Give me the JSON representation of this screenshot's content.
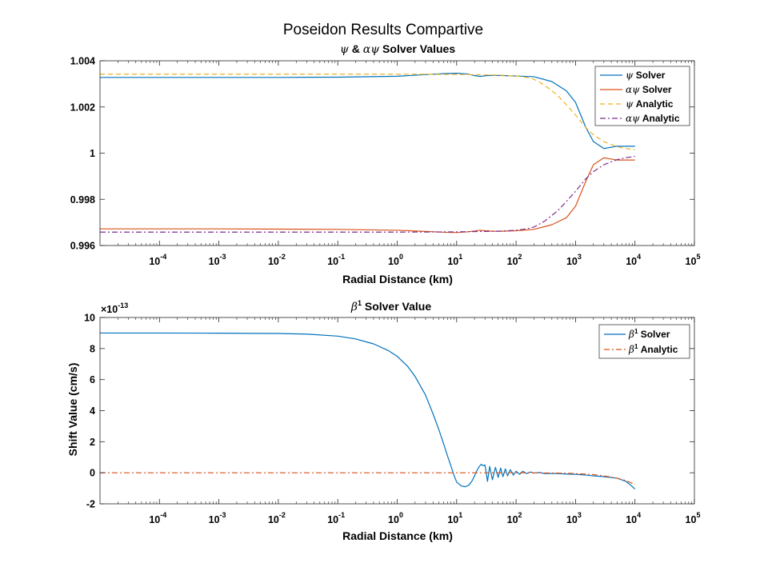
{
  "figure": {
    "suptitle": "Poseidon Results Compartive"
  },
  "colors": {
    "blue": "#0072BD",
    "orange": "#D95319",
    "yellow": "#EDB120",
    "purple": "#7E2F8E"
  },
  "chart_data": [
    {
      "type": "line",
      "title": "ψ & αψ Solver Values",
      "xlabel": "Radial Distance (km)",
      "ylabel": "",
      "xscale": "log",
      "xlim": [
        1e-05,
        100000.0
      ],
      "ylim": [
        0.996,
        1.004
      ],
      "xticks": [
        {
          "base": "10",
          "exp": "-4",
          "value": 0.0001
        },
        {
          "base": "10",
          "exp": "-3",
          "value": 0.001
        },
        {
          "base": "10",
          "exp": "-2",
          "value": 0.01
        },
        {
          "base": "10",
          "exp": "-1",
          "value": 0.1
        },
        {
          "base": "10",
          "exp": "0",
          "value": 1
        },
        {
          "base": "10",
          "exp": "1",
          "value": 10
        },
        {
          "base": "10",
          "exp": "2",
          "value": 100
        },
        {
          "base": "10",
          "exp": "3",
          "value": 1000
        },
        {
          "base": "10",
          "exp": "4",
          "value": 10000
        },
        {
          "base": "10",
          "exp": "5",
          "value": 100000
        }
      ],
      "yticks": [
        {
          "label": "0.996",
          "value": 0.996
        },
        {
          "label": "0.998",
          "value": 0.998
        },
        {
          "label": "1",
          "value": 1.0
        },
        {
          "label": "1.002",
          "value": 1.002
        },
        {
          "label": "1.004",
          "value": 1.004
        }
      ],
      "grid": false,
      "legend_position": "top-right",
      "series": [
        {
          "name": "ψ Solver",
          "greek": "ψ",
          "suffix": " Solver",
          "color": "#0072BD",
          "dash": "solid",
          "x": [
            1e-05,
            0.0001,
            0.001,
            0.01,
            0.1,
            1,
            3,
            7,
            10,
            15,
            20,
            25,
            30,
            40,
            60,
            100,
            200,
            400,
            700,
            1000,
            1500,
            2000,
            3000,
            5000,
            8000,
            10000
          ],
          "y": [
            1.00328,
            1.00328,
            1.00328,
            1.00328,
            1.00329,
            1.00333,
            1.0034,
            1.00345,
            1.00346,
            1.00343,
            1.00336,
            1.00332,
            1.00335,
            1.00337,
            1.00336,
            1.00334,
            1.00331,
            1.0031,
            1.0027,
            1.0022,
            1.0011,
            1.0005,
            1.0002,
            1.0003,
            1.0003,
            1.0003
          ]
        },
        {
          "name": "αψ Solver",
          "greek": "αψ",
          "suffix": " Solver",
          "color": "#D95319",
          "dash": "solid",
          "x": [
            1e-05,
            0.0001,
            0.001,
            0.01,
            0.1,
            1,
            3,
            7,
            10,
            15,
            20,
            25,
            30,
            40,
            60,
            100,
            200,
            400,
            700,
            1000,
            1500,
            2000,
            3000,
            5000,
            8000,
            10000
          ],
          "y": [
            0.99672,
            0.99672,
            0.99672,
            0.99671,
            0.9967,
            0.99666,
            0.99661,
            0.99657,
            0.99656,
            0.99659,
            0.99663,
            0.99666,
            0.99664,
            0.99662,
            0.99662,
            0.99664,
            0.9967,
            0.9969,
            0.9972,
            0.9977,
            0.9988,
            0.9995,
            0.9998,
            0.9997,
            0.9997,
            0.9997
          ]
        },
        {
          "name": "ψ Analytic",
          "greek": "ψ",
          "suffix": " Analytic",
          "color": "#EDB120",
          "dash": "dashed",
          "x": [
            1e-05,
            0.0001,
            0.001,
            0.01,
            0.1,
            1,
            10,
            50,
            100,
            150,
            200,
            300,
            500,
            700,
            1000,
            1500,
            2000,
            3000,
            5000,
            7000,
            10000
          ],
          "y": [
            1.00342,
            1.00342,
            1.00342,
            1.00342,
            1.00342,
            1.00342,
            1.00341,
            1.00338,
            1.00334,
            1.00328,
            1.0032,
            1.00295,
            1.0025,
            1.0021,
            1.00165,
            1.0011,
            1.0008,
            1.0005,
            1.00028,
            1.0002,
            1.00014
          ]
        },
        {
          "name": "αψ Analytic",
          "greek": "αψ",
          "suffix": " Analytic",
          "color": "#7E2F8E",
          "dash": "dashdot",
          "x": [
            1e-05,
            0.0001,
            0.001,
            0.01,
            0.1,
            1,
            10,
            50,
            100,
            150,
            200,
            300,
            500,
            700,
            1000,
            1500,
            2000,
            3000,
            5000,
            7000,
            10000
          ],
          "y": [
            0.99658,
            0.99658,
            0.99658,
            0.99658,
            0.99658,
            0.99658,
            0.99659,
            0.99662,
            0.99666,
            0.99672,
            0.9968,
            0.99705,
            0.9975,
            0.9979,
            0.99835,
            0.9989,
            0.9992,
            0.9995,
            0.99972,
            0.9998,
            0.99986
          ]
        }
      ]
    },
    {
      "type": "line",
      "title": "β¹ Solver Value",
      "xlabel": "Radial Distance (km)",
      "ylabel": "Shift Value (cm/s)",
      "xscale": "log",
      "xlim": [
        1e-05,
        100000.0
      ],
      "ylim": [
        -2,
        10
      ],
      "y_multiplier": {
        "base": "×10",
        "exp": "-13"
      },
      "xticks": [
        {
          "base": "10",
          "exp": "-4",
          "value": 0.0001
        },
        {
          "base": "10",
          "exp": "-3",
          "value": 0.001
        },
        {
          "base": "10",
          "exp": "-2",
          "value": 0.01
        },
        {
          "base": "10",
          "exp": "-1",
          "value": 0.1
        },
        {
          "base": "10",
          "exp": "0",
          "value": 1
        },
        {
          "base": "10",
          "exp": "1",
          "value": 10
        },
        {
          "base": "10",
          "exp": "2",
          "value": 100
        },
        {
          "base": "10",
          "exp": "3",
          "value": 1000
        },
        {
          "base": "10",
          "exp": "4",
          "value": 10000
        },
        {
          "base": "10",
          "exp": "5",
          "value": 100000
        }
      ],
      "yticks": [
        {
          "label": "-2",
          "value": -2
        },
        {
          "label": "0",
          "value": 0
        },
        {
          "label": "2",
          "value": 2
        },
        {
          "label": "4",
          "value": 4
        },
        {
          "label": "6",
          "value": 6
        },
        {
          "label": "8",
          "value": 8
        },
        {
          "label": "10",
          "value": 10
        }
      ],
      "grid": false,
      "legend_position": "top-right",
      "series": [
        {
          "name": "β¹ Solver",
          "greek": "β",
          "sup": "1",
          "suffix": " Solver",
          "color": "#0072BD",
          "dash": "solid",
          "x": [
            1e-05,
            0.0001,
            0.001,
            0.01,
            0.03,
            0.1,
            0.2,
            0.4,
            0.7,
            1,
            1.5,
            2,
            3,
            4,
            5,
            6,
            7,
            8,
            9,
            10,
            12,
            14,
            16,
            18,
            20,
            22,
            24,
            26,
            28,
            30,
            33,
            36,
            40,
            45,
            50,
            55,
            60,
            66,
            72,
            80,
            90,
            100,
            115,
            130,
            150,
            175,
            200,
            250,
            300,
            400,
            500,
            700,
            1000,
            1500,
            2000,
            3000,
            5000,
            7000,
            8500,
            10000
          ],
          "y": [
            9.0,
            9.0,
            8.99,
            8.97,
            8.93,
            8.8,
            8.62,
            8.3,
            7.88,
            7.5,
            6.85,
            6.2,
            5.0,
            3.8,
            2.8,
            1.9,
            1.1,
            0.45,
            -0.15,
            -0.6,
            -0.85,
            -0.9,
            -0.8,
            -0.55,
            -0.2,
            0.15,
            0.4,
            0.55,
            0.45,
            0.5,
            -0.55,
            0.4,
            -0.45,
            0.35,
            -0.3,
            0.3,
            -0.25,
            0.25,
            -0.2,
            0.2,
            -0.15,
            0.1,
            -0.1,
            0.1,
            -0.05,
            0.05,
            -0.02,
            0.02,
            -0.05,
            -0.05,
            -0.05,
            -0.08,
            -0.1,
            -0.15,
            -0.2,
            -0.25,
            -0.35,
            -0.55,
            -0.8,
            -1.05
          ]
        },
        {
          "name": "β¹ Analytic",
          "greek": "β",
          "sup": "1",
          "suffix": " Analytic",
          "color": "#D95319",
          "dash": "dashdot",
          "x": [
            1e-05,
            0.0001,
            0.001,
            0.01,
            0.1,
            1,
            10,
            100,
            500,
            1000,
            2000,
            3000,
            5000,
            7000,
            10000
          ],
          "y": [
            0,
            0,
            0,
            0,
            0,
            0,
            0,
            0,
            -0.02,
            -0.05,
            -0.12,
            -0.2,
            -0.35,
            -0.5,
            -0.75
          ]
        }
      ]
    }
  ]
}
